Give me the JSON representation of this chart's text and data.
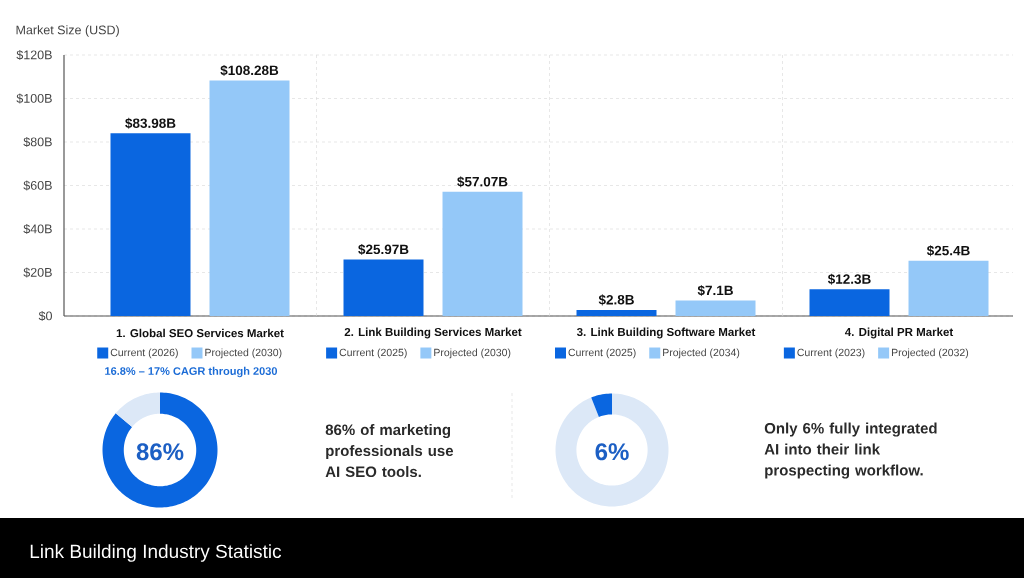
{
  "chart_data": [
    {
      "type": "bar",
      "categories": [
        "1. Global SEO Services Market",
        "2. Link Building Services Market",
        "3. Link Building Software Market",
        "4. Digital PR Market"
      ],
      "series": [
        {
          "name": "Current (2026)",
          "color": "#0a66e0",
          "values": [
            83.98,
            null,
            null,
            null
          ],
          "value_labels": [
            "$83.98B",
            null,
            null,
            null
          ]
        },
        {
          "name": "Projected (2030)",
          "color": "#94c8f8",
          "values": [
            108.28,
            null,
            null,
            null
          ],
          "value_labels": [
            "$108.28B",
            null,
            null,
            null
          ]
        },
        {
          "name": "Current (2025)",
          "color": "#0a66e0",
          "values": [
            null,
            25.97,
            null,
            null
          ],
          "value_labels": [
            null,
            "$25.97B",
            null,
            null
          ]
        },
        {
          "name": "Projected (2030)",
          "color": "#94c8f8",
          "values": [
            null,
            57.07,
            null,
            null
          ],
          "value_labels": [
            null,
            "$57.07B",
            null,
            null
          ]
        },
        {
          "name": "Current (2025)",
          "color": "#0a66e0",
          "values": [
            null,
            null,
            2.8,
            null
          ],
          "value_labels": [
            null,
            null,
            "$2.8B",
            null
          ]
        },
        {
          "name": "Projected (2034)",
          "color": "#94c8f8",
          "values": [
            null,
            null,
            7.1,
            null
          ],
          "value_labels": [
            null,
            null,
            "$7.1B",
            null
          ]
        },
        {
          "name": "Current (2023)",
          "color": "#0a66e0",
          "values": [
            null,
            null,
            null,
            12.3
          ],
          "value_labels": [
            null,
            null,
            null,
            "$12.3B"
          ]
        },
        {
          "name": "Projected (2032)",
          "color": "#94c8f8",
          "values": [
            null,
            null,
            null,
            25.4
          ],
          "value_labels": [
            null,
            null,
            null,
            "$25.4B"
          ]
        }
      ],
      "ylabel": "Market Size (USD)",
      "ylim": [
        0,
        120
      ],
      "yticks": [
        {
          "value": 0,
          "label": "$0"
        },
        {
          "value": 20,
          "label": "$20B"
        },
        {
          "value": 40,
          "label": "$40B"
        },
        {
          "value": 60,
          "label": "$60B"
        },
        {
          "value": 80,
          "label": "$80B"
        },
        {
          "value": 100,
          "label": "$100B"
        },
        {
          "value": 120,
          "label": "$120B"
        }
      ],
      "grid": "y",
      "legend": "bottom",
      "annotations": [
        "16.8% – 17% CAGR through 2030",
        "Link Building Industry Statistic"
      ]
    },
    {
      "type": "donut",
      "categories": [
        null,
        null
      ],
      "values": [
        86,
        14
      ],
      "colors": [
        "#0a66e0",
        "#dce8f7"
      ],
      "annotations": [
        "86%",
        "86% of marketing professionals use AI SEO tools."
      ]
    },
    {
      "type": "donut",
      "categories": [
        null,
        null
      ],
      "values": [
        94,
        6
      ],
      "colors": [
        "#dce8f7",
        "#0a66e0"
      ],
      "annotations": [
        "6%",
        "Only 6% fully integrated AI into their link prospecting workflow."
      ]
    }
  ]
}
